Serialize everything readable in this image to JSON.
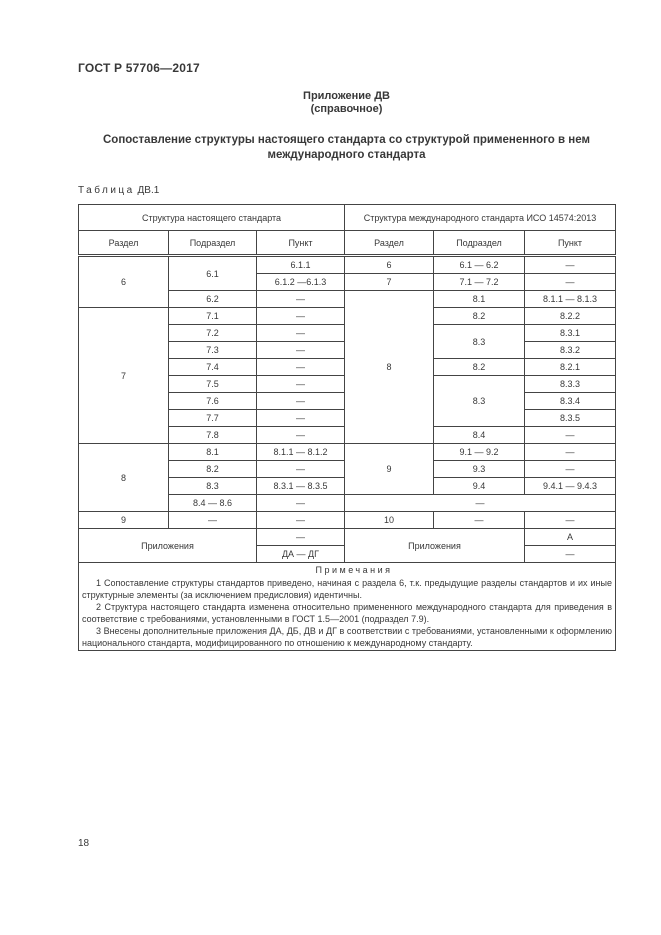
{
  "page": {
    "doc_header": "ГОСТ Р 57706—2017",
    "appendix_label": "Приложение ДВ",
    "appendix_kind": "(справочное)",
    "title_line1": "Сопоставление структуры настоящего стандарта со структурой примененного в нем",
    "title_line2": "международного стандарта",
    "table_caption_word": "Таблица",
    "table_caption_num": "ДВ.1",
    "page_number": "18"
  },
  "table": {
    "group_headers": [
      "Структура настоящего стандарта",
      "Структура международного стандарта ИСО 14574:2013"
    ],
    "column_headers": [
      "Раздел",
      "Подраздел",
      "Пункт",
      "Раздел",
      "Подраздел",
      "Пункт"
    ],
    "rows": [
      [
        {
          "t": "6",
          "rs": 3
        },
        {
          "t": "6.1",
          "rs": 2
        },
        {
          "t": "6.1.1"
        },
        {
          "t": "6"
        },
        {
          "t": "6.1 — 6.2"
        },
        {
          "t": "—"
        }
      ],
      [
        {
          "t": "6.1.2 —6.1.3"
        },
        {
          "t": "7"
        },
        {
          "t": "7.1 — 7.2"
        },
        {
          "t": "—"
        }
      ],
      [
        {
          "t": "6.2"
        },
        {
          "t": "—"
        },
        {
          "t": "8",
          "rs": 9
        },
        {
          "t": "8.1"
        },
        {
          "t": "8.1.1 — 8.1.3"
        }
      ],
      [
        {
          "t": "7",
          "rs": 8
        },
        {
          "t": "7.1"
        },
        {
          "t": "—"
        },
        {
          "t": "8.2"
        },
        {
          "t": "8.2.2"
        }
      ],
      [
        {
          "t": "7.2"
        },
        {
          "t": "—"
        },
        {
          "t": "8.3",
          "rs": 2
        },
        {
          "t": "8.3.1"
        }
      ],
      [
        {
          "t": "7.3"
        },
        {
          "t": "—"
        },
        {
          "t": "8.3.2"
        }
      ],
      [
        {
          "t": "7.4"
        },
        {
          "t": "—"
        },
        {
          "t": "8.2"
        },
        {
          "t": "8.2.1"
        }
      ],
      [
        {
          "t": "7.5"
        },
        {
          "t": "—"
        },
        {
          "t": "8.3",
          "rs": 3
        },
        {
          "t": "8.3.3"
        }
      ],
      [
        {
          "t": "7.6"
        },
        {
          "t": "—"
        },
        {
          "t": "8.3.4"
        }
      ],
      [
        {
          "t": "7.7"
        },
        {
          "t": "—"
        },
        {
          "t": "8.3.5"
        }
      ],
      [
        {
          "t": "7.8"
        },
        {
          "t": "—"
        },
        {
          "t": "8.4"
        },
        {
          "t": "—"
        }
      ],
      [
        {
          "t": "8",
          "rs": 4
        },
        {
          "t": "8.1"
        },
        {
          "t": "8.1.1 — 8.1.2"
        },
        {
          "t": "9",
          "rs": 3
        },
        {
          "t": "9.1 — 9.2"
        },
        {
          "t": "—"
        }
      ],
      [
        {
          "t": "8.2"
        },
        {
          "t": "—"
        },
        {
          "t": "9.3"
        },
        {
          "t": "—"
        }
      ],
      [
        {
          "t": "8.3"
        },
        {
          "t": "8.3.1 — 8.3.5"
        },
        {
          "t": "9.4"
        },
        {
          "t": "9.4.1 — 9.4.3"
        }
      ],
      [
        {
          "t": "8.4 — 8.6"
        },
        {
          "t": "—"
        },
        {
          "t": "—",
          "cs": 3
        }
      ],
      [
        {
          "t": "9"
        },
        {
          "t": "—"
        },
        {
          "t": "—"
        },
        {
          "t": "10"
        },
        {
          "t": "—"
        },
        {
          "t": "—"
        }
      ],
      [
        {
          "t": "Приложения",
          "cs": 2,
          "rs": 2
        },
        {
          "t": "—"
        },
        {
          "t": "Приложения",
          "cs": 2,
          "rs": 2
        },
        {
          "t": "А"
        }
      ],
      [
        {
          "t": "ДА — ДГ"
        },
        {
          "t": "—"
        }
      ]
    ],
    "notes_heading": "Примечания",
    "notes": [
      "1 Сопоставление структуры стандартов приведено, начиная с раздела 6, т.к. предыдущие разделы стандартов и их иные структурные элементы (за исключением предисловия) идентичны.",
      "2 Структура настоящего стандарта изменена относительно примененного международного стандарта для приведения в соответствие с требованиями, установленными в ГОСТ 1.5—2001 (подраздел 7.9).",
      "3 Внесены дополнительные приложения ДА, ДБ, ДВ и ДГ в соответствии с требованиями, установленными к оформлению национального стандарта, модифицированного по отношению к международному стандарту."
    ]
  },
  "colors": {
    "text": "#383838",
    "border": "#444444",
    "background": "#ffffff"
  }
}
